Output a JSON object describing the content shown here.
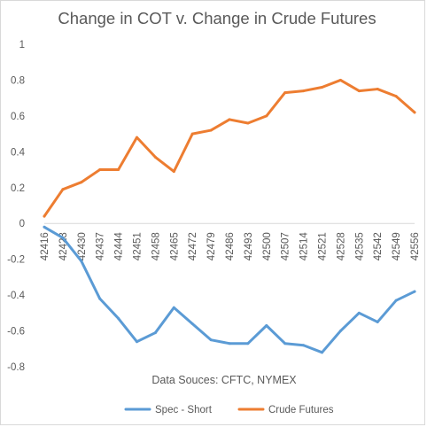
{
  "chart_data": {
    "type": "line",
    "title": "Change in COT v. Change in Crude Futures",
    "annotation": "Data Souces: CFTC, NYMEX",
    "categories": [
      "42416",
      "42423",
      "42430",
      "42437",
      "42444",
      "42451",
      "42458",
      "42465",
      "42472",
      "42479",
      "42486",
      "42493",
      "42500",
      "42507",
      "42514",
      "42521",
      "42528",
      "42535",
      "42542",
      "42549",
      "42556"
    ],
    "ylim": [
      -0.8,
      1
    ],
    "yticks": [
      "1",
      "0.8",
      "0.6",
      "0.4",
      "0.2",
      "0",
      "-0.2",
      "-0.4",
      "-0.6",
      "-0.8"
    ],
    "ytick_values": [
      1,
      0.8,
      0.6,
      0.4,
      0.2,
      0,
      -0.2,
      -0.4,
      -0.6,
      -0.8
    ],
    "grid": false,
    "legend_position": "bottom",
    "series": [
      {
        "name": "Spec - Short",
        "color": "#5B9BD5",
        "values": [
          -0.02,
          -0.08,
          -0.21,
          -0.42,
          -0.53,
          -0.66,
          -0.61,
          -0.47,
          -0.56,
          -0.65,
          -0.67,
          -0.67,
          -0.57,
          -0.67,
          -0.68,
          -0.72,
          -0.6,
          -0.5,
          -0.55,
          -0.43,
          -0.38
        ]
      },
      {
        "name": "Crude Futures",
        "color": "#ED7D31",
        "values": [
          0.04,
          0.19,
          0.23,
          0.3,
          0.3,
          0.48,
          0.37,
          0.29,
          0.5,
          0.52,
          0.58,
          0.56,
          0.6,
          0.73,
          0.74,
          0.76,
          0.8,
          0.74,
          0.75,
          0.71,
          0.62
        ]
      }
    ]
  }
}
